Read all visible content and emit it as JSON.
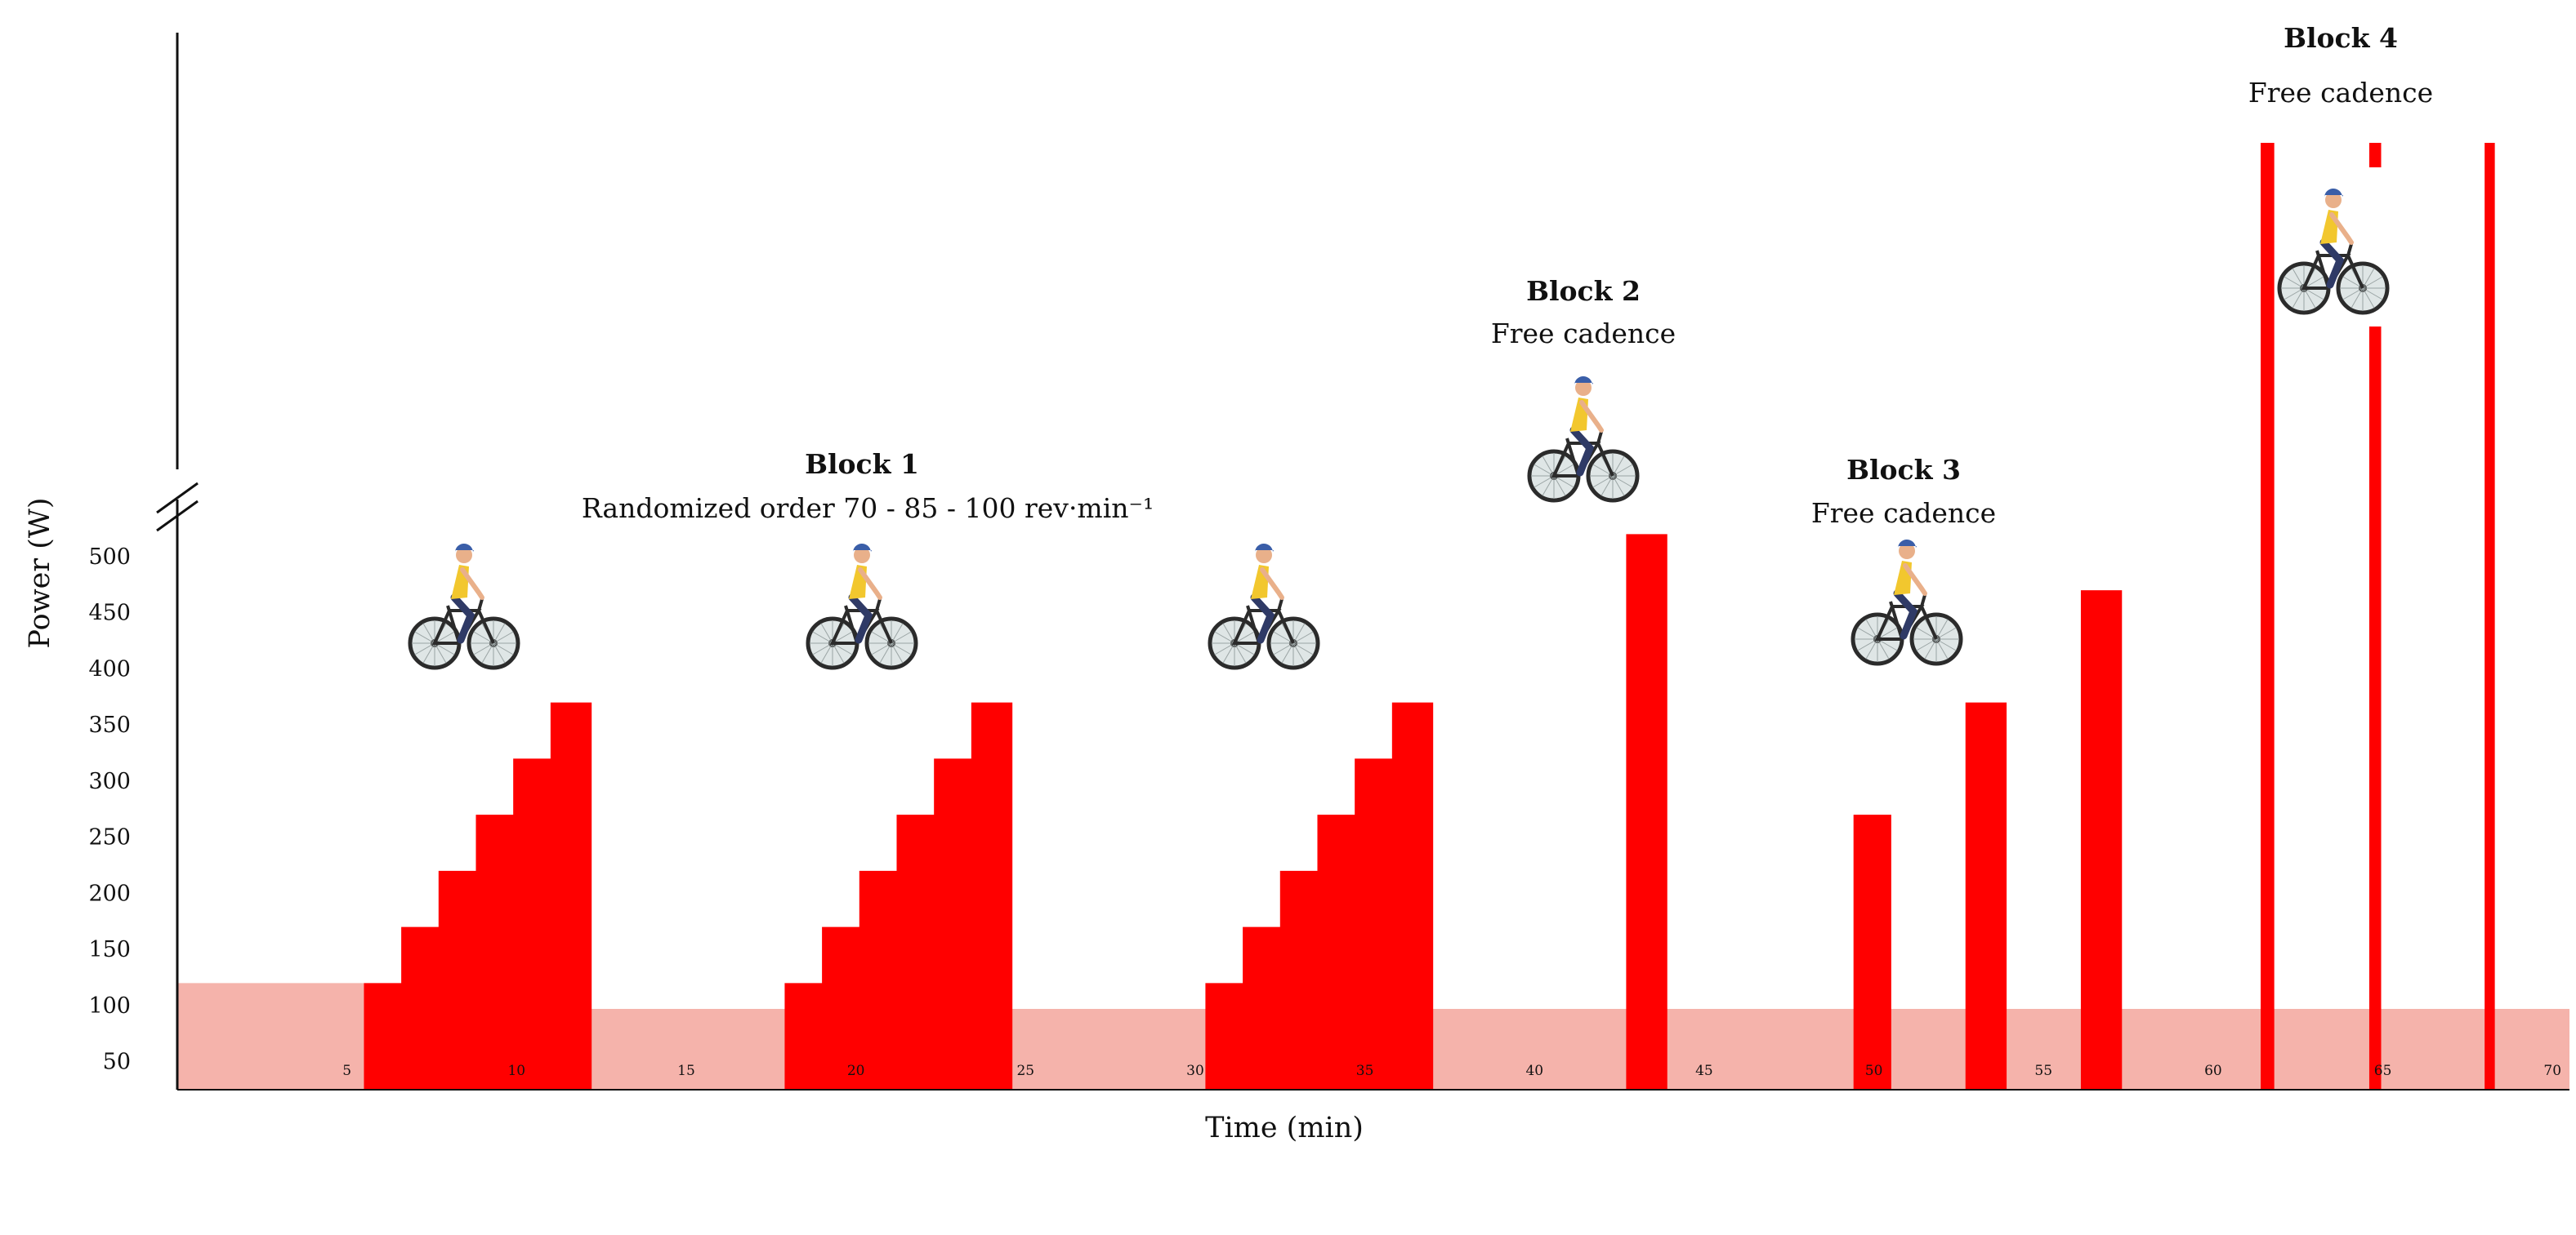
{
  "chart_data": {
    "type": "bar",
    "xlabel": "Time (min)",
    "ylabel": "Power (W)",
    "x_ticks": [
      5,
      10,
      15,
      20,
      25,
      30,
      35,
      40,
      45,
      50,
      55,
      60,
      65,
      70
    ],
    "y_ticks": [
      50,
      100,
      150,
      200,
      250,
      300,
      350,
      400,
      450,
      500
    ],
    "xlim": [
      0,
      70.5
    ],
    "ylim": [
      25,
      500
    ],
    "y_axis_break": true,
    "grid": false,
    "colors": {
      "interval": "#ff0000",
      "background": "#f5b3ab"
    },
    "background_segments": [
      {
        "start": 0,
        "end": 5.5,
        "power": 120
      },
      {
        "start": 5.5,
        "end": 70.5,
        "power": 97
      }
    ],
    "intervals": [
      {
        "start": 5.5,
        "end": 6.6,
        "power": 120
      },
      {
        "start": 6.6,
        "end": 7.7,
        "power": 170
      },
      {
        "start": 7.7,
        "end": 8.8,
        "power": 220
      },
      {
        "start": 8.8,
        "end": 9.9,
        "power": 270
      },
      {
        "start": 9.9,
        "end": 11.0,
        "power": 320
      },
      {
        "start": 11.0,
        "end": 12.2,
        "power": 370
      },
      {
        "start": 17.9,
        "end": 19.0,
        "power": 120
      },
      {
        "start": 19.0,
        "end": 20.1,
        "power": 170
      },
      {
        "start": 20.1,
        "end": 21.2,
        "power": 220
      },
      {
        "start": 21.2,
        "end": 22.3,
        "power": 270
      },
      {
        "start": 22.3,
        "end": 23.4,
        "power": 320
      },
      {
        "start": 23.4,
        "end": 24.6,
        "power": 370
      },
      {
        "start": 30.3,
        "end": 31.4,
        "power": 120
      },
      {
        "start": 31.4,
        "end": 32.5,
        "power": 170
      },
      {
        "start": 32.5,
        "end": 33.6,
        "power": 220
      },
      {
        "start": 33.6,
        "end": 34.7,
        "power": 270
      },
      {
        "start": 34.7,
        "end": 35.8,
        "power": 320
      },
      {
        "start": 35.8,
        "end": 37.0,
        "power": 370
      },
      {
        "start": 42.7,
        "end": 43.9,
        "power": 520
      },
      {
        "start": 49.4,
        "end": 50.5,
        "power": 270
      },
      {
        "start": 52.7,
        "end": 53.9,
        "power": 370
      },
      {
        "start": 56.1,
        "end": 57.3,
        "power": 470
      },
      {
        "start": 61.4,
        "end": 61.8,
        "power": 900,
        "sprint": true
      },
      {
        "start": 64.6,
        "end": 64.95,
        "power": 900,
        "sprint": true
      },
      {
        "start": 68.0,
        "end": 68.3,
        "power": 900,
        "sprint": true
      }
    ],
    "annotations": [
      {
        "title": "Block 1",
        "subtitle": "Randomized order 70 - 85 - 100 rev·min⁻¹"
      },
      {
        "title": "Block 2",
        "subtitle": "Free cadence"
      },
      {
        "title": "Block 3",
        "subtitle": "Free cadence"
      },
      {
        "title": "Block 4",
        "subtitle": "Free cadence"
      }
    ],
    "icons": [
      "cyclist-icon",
      "cyclist-icon",
      "cyclist-icon",
      "cyclist-icon",
      "cyclist-icon",
      "cyclist-icon"
    ]
  }
}
